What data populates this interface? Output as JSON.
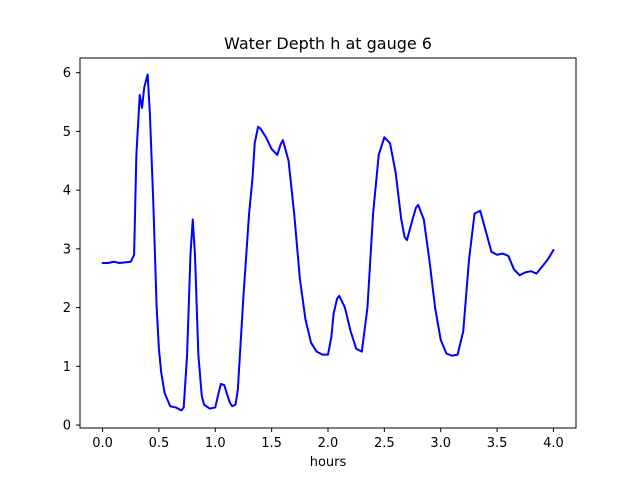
{
  "chart_data": {
    "type": "line",
    "title": "Water Depth h at gauge 6",
    "xlabel": "hours",
    "ylabel": "",
    "xlim": [
      -0.2,
      4.2
    ],
    "ylim": [
      -0.05,
      6.25
    ],
    "xticks": [
      0.0,
      0.5,
      1.0,
      1.5,
      2.0,
      2.5,
      3.0,
      3.5,
      4.0
    ],
    "xtick_labels": [
      "0.0",
      "0.5",
      "1.0",
      "1.5",
      "2.0",
      "2.5",
      "3.0",
      "3.5",
      "4.0"
    ],
    "yticks": [
      0,
      1,
      2,
      3,
      4,
      5,
      6
    ],
    "ytick_labels": [
      "0",
      "1",
      "2",
      "3",
      "4",
      "5",
      "6"
    ],
    "grid": false,
    "colors": {
      "series": "#0000ff",
      "axes": "#000000",
      "background": "#ffffff"
    },
    "series": [
      {
        "color": "#0000ff",
        "x": [
          0.0,
          0.05,
          0.1,
          0.15,
          0.2,
          0.25,
          0.28,
          0.3,
          0.33,
          0.35,
          0.37,
          0.4,
          0.42,
          0.45,
          0.48,
          0.5,
          0.52,
          0.55,
          0.6,
          0.65,
          0.7,
          0.72,
          0.75,
          0.78,
          0.8,
          0.82,
          0.85,
          0.88,
          0.9,
          0.95,
          1.0,
          1.03,
          1.05,
          1.08,
          1.1,
          1.13,
          1.15,
          1.18,
          1.2,
          1.25,
          1.3,
          1.33,
          1.35,
          1.38,
          1.4,
          1.45,
          1.5,
          1.55,
          1.58,
          1.6,
          1.65,
          1.7,
          1.75,
          1.8,
          1.85,
          1.9,
          1.95,
          2.0,
          2.03,
          2.05,
          2.08,
          2.1,
          2.15,
          2.2,
          2.25,
          2.3,
          2.35,
          2.4,
          2.45,
          2.5,
          2.55,
          2.6,
          2.65,
          2.68,
          2.7,
          2.75,
          2.78,
          2.8,
          2.85,
          2.9,
          2.95,
          3.0,
          3.05,
          3.1,
          3.15,
          3.2,
          3.25,
          3.3,
          3.35,
          3.4,
          3.45,
          3.5,
          3.55,
          3.6,
          3.65,
          3.7,
          3.75,
          3.8,
          3.85,
          3.9,
          3.95,
          4.0
        ],
        "y": [
          2.76,
          2.76,
          2.78,
          2.76,
          2.77,
          2.78,
          2.9,
          4.6,
          5.62,
          5.4,
          5.75,
          5.97,
          5.3,
          3.8,
          2.0,
          1.3,
          0.9,
          0.55,
          0.32,
          0.3,
          0.25,
          0.3,
          1.2,
          2.9,
          3.5,
          2.9,
          1.2,
          0.5,
          0.35,
          0.28,
          0.3,
          0.55,
          0.7,
          0.68,
          0.55,
          0.38,
          0.32,
          0.35,
          0.6,
          2.2,
          3.6,
          4.2,
          4.8,
          5.08,
          5.05,
          4.9,
          4.7,
          4.6,
          4.78,
          4.85,
          4.5,
          3.6,
          2.5,
          1.8,
          1.4,
          1.25,
          1.2,
          1.2,
          1.5,
          1.9,
          2.15,
          2.2,
          2.0,
          1.6,
          1.3,
          1.25,
          2.0,
          3.6,
          4.6,
          4.9,
          4.8,
          4.3,
          3.5,
          3.2,
          3.15,
          3.5,
          3.7,
          3.75,
          3.5,
          2.8,
          2.0,
          1.45,
          1.22,
          1.18,
          1.2,
          1.6,
          2.8,
          3.6,
          3.65,
          3.3,
          2.95,
          2.9,
          2.92,
          2.88,
          2.65,
          2.55,
          2.6,
          2.62,
          2.58,
          2.7,
          2.82,
          2.98
        ]
      }
    ]
  }
}
